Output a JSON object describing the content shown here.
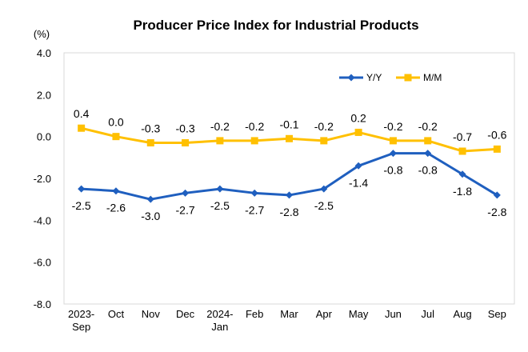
{
  "chart_data": {
    "type": "line",
    "title": "Producer Price Index for Industrial Products",
    "unit_label": "(%)",
    "categories": [
      [
        "2023-",
        "Sep"
      ],
      [
        "Oct"
      ],
      [
        "Nov"
      ],
      [
        "Dec"
      ],
      [
        "2024-",
        "Jan"
      ],
      [
        "Feb"
      ],
      [
        "Mar"
      ],
      [
        "Apr"
      ],
      [
        "May"
      ],
      [
        "Jun"
      ],
      [
        "Jul"
      ],
      [
        "Aug"
      ],
      [
        "Sep"
      ]
    ],
    "ylim": [
      -8.0,
      4.0
    ],
    "yticks": [
      "4.0",
      "2.0",
      "0.0",
      "-2.0",
      "-4.0",
      "-6.0",
      "-8.0"
    ],
    "legend_position": "top-right",
    "series": [
      {
        "name": "Y/Y",
        "color": "#1f5fbf",
        "marker": "diamond",
        "values": [
          -2.5,
          -2.6,
          -3.0,
          -2.7,
          -2.5,
          -2.7,
          -2.8,
          -2.5,
          -1.4,
          -0.8,
          -0.8,
          -1.8,
          -2.8
        ],
        "labels": [
          "-2.5",
          "-2.6",
          "-3.0",
          "-2.7",
          "-2.5",
          "-2.7",
          "-2.8",
          "-2.5",
          "-1.4",
          "-0.8",
          "-0.8",
          "-1.8",
          "-2.8"
        ]
      },
      {
        "name": "M/M",
        "color": "#ffc000",
        "marker": "square",
        "values": [
          0.4,
          0.0,
          -0.3,
          -0.3,
          -0.2,
          -0.2,
          -0.1,
          -0.2,
          0.2,
          -0.2,
          -0.2,
          -0.7,
          -0.6
        ],
        "labels": [
          "0.4",
          "0.0",
          "-0.3",
          "-0.3",
          "-0.2",
          "-0.2",
          "-0.1",
          "-0.2",
          "0.2",
          "-0.2",
          "-0.2",
          "-0.7",
          "-0.6"
        ]
      }
    ]
  }
}
